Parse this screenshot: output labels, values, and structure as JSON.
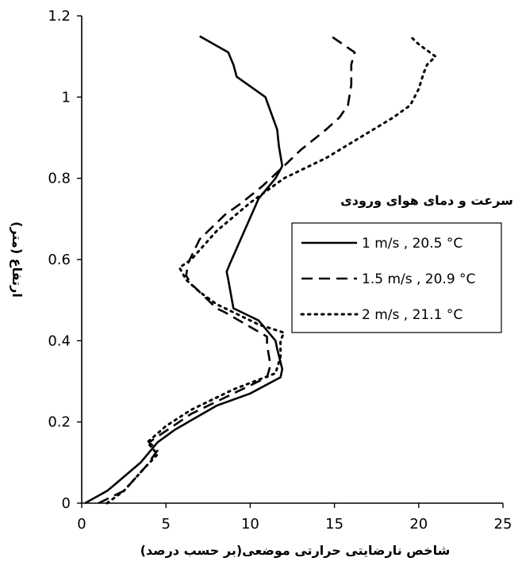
{
  "chart_data": {
    "type": "line",
    "xlabel": "شاخص نارضایتی حرارتی موضعی(بر حسب درصد)",
    "ylabel": "ارتفاع (متر)",
    "xlim": [
      0,
      25
    ],
    "ylim": [
      0,
      1.2
    ],
    "xticks": [
      0,
      5,
      10,
      15,
      20,
      25
    ],
    "yticks": [
      0,
      0.2,
      0.4,
      0.6,
      0.8,
      1,
      1.2
    ],
    "xtick_labels": [
      "0",
      "5",
      "10",
      "15",
      "20",
      "25"
    ],
    "ytick_labels": [
      "0",
      "0.2",
      "0.4",
      "0.6",
      "0.8",
      "1",
      "1.2"
    ],
    "grid": false,
    "legend": {
      "title": "سرعت و دمای هوای ورودی",
      "placement": "right-middle"
    },
    "series": [
      {
        "name": "1 m/s , 20.5 °C",
        "dash": "solid",
        "color": "#000000",
        "points": [
          [
            0.2,
            0.0
          ],
          [
            1.5,
            0.03
          ],
          [
            1.8,
            0.04
          ],
          [
            3.5,
            0.1
          ],
          [
            4.5,
            0.15
          ],
          [
            5.5,
            0.18
          ],
          [
            8.0,
            0.24
          ],
          [
            10.0,
            0.27
          ],
          [
            11.8,
            0.31
          ],
          [
            11.9,
            0.33
          ],
          [
            11.6,
            0.38
          ],
          [
            11.5,
            0.4
          ],
          [
            10.5,
            0.45
          ],
          [
            9.5,
            0.47
          ],
          [
            9.0,
            0.48
          ],
          [
            8.7,
            0.55
          ],
          [
            8.6,
            0.57
          ],
          [
            8.8,
            0.59
          ],
          [
            10.5,
            0.75
          ],
          [
            11.5,
            0.8
          ],
          [
            11.9,
            0.83
          ],
          [
            11.7,
            0.88
          ],
          [
            11.6,
            0.92
          ],
          [
            10.9,
            1.0
          ],
          [
            9.2,
            1.05
          ],
          [
            9.0,
            1.08
          ],
          [
            8.8,
            1.1
          ],
          [
            8.7,
            1.11
          ],
          [
            7.0,
            1.15
          ]
        ]
      },
      {
        "name": "1.5 m/s , 20.9 °C",
        "dash": "dashed",
        "color": "#000000",
        "points": [
          [
            1.0,
            0.0
          ],
          [
            2.5,
            0.03
          ],
          [
            3.8,
            0.09
          ],
          [
            4.5,
            0.13
          ],
          [
            4.0,
            0.15
          ],
          [
            6.5,
            0.22
          ],
          [
            9.0,
            0.27
          ],
          [
            11.0,
            0.31
          ],
          [
            11.2,
            0.34
          ],
          [
            11.0,
            0.39
          ],
          [
            11.0,
            0.41
          ],
          [
            8.5,
            0.47
          ],
          [
            8.0,
            0.48
          ],
          [
            6.5,
            0.54
          ],
          [
            6.2,
            0.56
          ],
          [
            6.3,
            0.59
          ],
          [
            7.0,
            0.65
          ],
          [
            8.5,
            0.71
          ],
          [
            9.5,
            0.74
          ],
          [
            10.7,
            0.78
          ],
          [
            12.0,
            0.83
          ],
          [
            13.0,
            0.87
          ],
          [
            14.5,
            0.92
          ],
          [
            15.3,
            0.95
          ],
          [
            15.8,
            0.98
          ],
          [
            16.0,
            1.03
          ],
          [
            16.0,
            1.08
          ],
          [
            16.2,
            1.11
          ],
          [
            14.8,
            1.15
          ]
        ]
      },
      {
        "name": "2 m/s , 21.1 °C",
        "dash": "dotted",
        "color": "#000000",
        "points": [
          [
            1.5,
            0.0
          ],
          [
            2.5,
            0.03
          ],
          [
            3.8,
            0.09
          ],
          [
            4.5,
            0.12
          ],
          [
            3.9,
            0.15
          ],
          [
            5.0,
            0.19
          ],
          [
            6.5,
            0.23
          ],
          [
            7.5,
            0.25
          ],
          [
            9.0,
            0.28
          ],
          [
            11.5,
            0.32
          ],
          [
            11.8,
            0.36
          ],
          [
            11.8,
            0.4
          ],
          [
            12.0,
            0.42
          ],
          [
            10.5,
            0.44
          ],
          [
            9.0,
            0.47
          ],
          [
            8.0,
            0.49
          ],
          [
            7.0,
            0.52
          ],
          [
            6.2,
            0.55
          ],
          [
            5.8,
            0.58
          ],
          [
            6.5,
            0.6
          ],
          [
            8.0,
            0.67
          ],
          [
            10.0,
            0.74
          ],
          [
            12.0,
            0.8
          ],
          [
            14.5,
            0.85
          ],
          [
            16.5,
            0.9
          ],
          [
            18.5,
            0.95
          ],
          [
            19.5,
            0.98
          ],
          [
            20.0,
            1.02
          ],
          [
            20.3,
            1.06
          ],
          [
            20.5,
            1.08
          ],
          [
            21.0,
            1.1
          ],
          [
            20.0,
            1.13
          ],
          [
            19.5,
            1.15
          ]
        ]
      }
    ]
  }
}
